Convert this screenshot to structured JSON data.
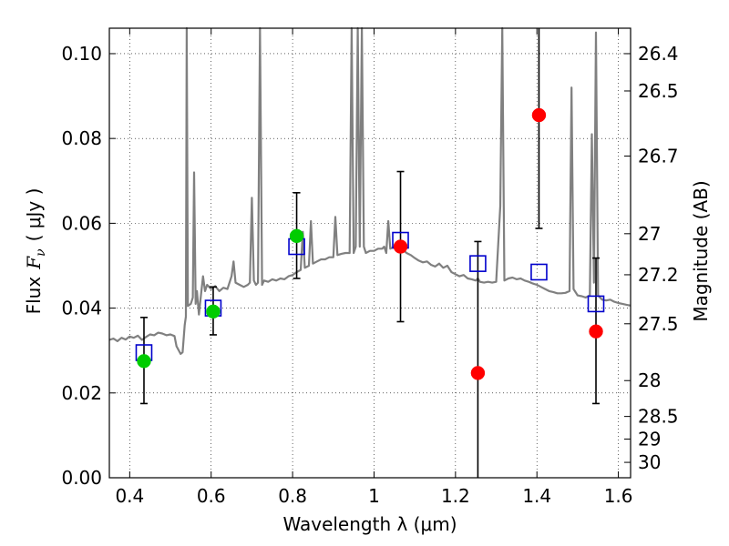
{
  "chart_data": {
    "type": "scatter",
    "xlabel": "Wavelength  λ (μm)",
    "ylabel_main": "Flux",
    "ylabel_symbol": "F",
    "ylabel_subscript": "ν",
    "ylabel_unit": "( μJy )",
    "ylabel_right": "Magnitude (AB)",
    "xlim": [
      0.35,
      1.63
    ],
    "ylim": [
      0.0,
      0.106
    ],
    "grid": true,
    "x_ticks": [
      {
        "value": 0.4,
        "label": "0.4"
      },
      {
        "value": 0.6,
        "label": "0.6"
      },
      {
        "value": 0.8,
        "label": "0.8"
      },
      {
        "value": 1.0,
        "label": "1"
      },
      {
        "value": 1.2,
        "label": "1.2"
      },
      {
        "value": 1.4,
        "label": "1.4"
      },
      {
        "value": 1.6,
        "label": "1.6"
      }
    ],
    "y_ticks": [
      {
        "value": 0.0,
        "label": "0.00"
      },
      {
        "value": 0.02,
        "label": "0.02"
      },
      {
        "value": 0.04,
        "label": "0.04"
      },
      {
        "value": 0.06,
        "label": "0.06"
      },
      {
        "value": 0.08,
        "label": "0.08"
      },
      {
        "value": 0.1,
        "label": "0.10"
      }
    ],
    "mag_ticks": [
      {
        "value": 26.4,
        "label": "26.4"
      },
      {
        "value": 26.5,
        "label": "26.5"
      },
      {
        "value": 26.7,
        "label": "26.7"
      },
      {
        "value": 27,
        "label": "27"
      },
      {
        "value": 27.2,
        "label": "27.2"
      },
      {
        "value": 27.5,
        "label": "27.5"
      },
      {
        "value": 28,
        "label": "28"
      },
      {
        "value": 28.5,
        "label": "28.5"
      },
      {
        "value": 29,
        "label": "29"
      },
      {
        "value": 30,
        "label": "30"
      }
    ],
    "model_spectrum": {
      "color": "#808080",
      "points": [
        [
          0.35,
          0.0325
        ],
        [
          0.36,
          0.0328
        ],
        [
          0.37,
          0.0322
        ],
        [
          0.38,
          0.033
        ],
        [
          0.39,
          0.0326
        ],
        [
          0.4,
          0.0333
        ],
        [
          0.41,
          0.033
        ],
        [
          0.42,
          0.0335
        ],
        [
          0.43,
          0.0325
        ],
        [
          0.44,
          0.0332
        ],
        [
          0.45,
          0.0338
        ],
        [
          0.46,
          0.0336
        ],
        [
          0.47,
          0.0342
        ],
        [
          0.48,
          0.034
        ],
        [
          0.49,
          0.0336
        ],
        [
          0.5,
          0.0338
        ],
        [
          0.51,
          0.0334
        ],
        [
          0.515,
          0.031
        ],
        [
          0.525,
          0.0292
        ],
        [
          0.53,
          0.0296
        ],
        [
          0.535,
          0.036
        ],
        [
          0.538,
          0.038
        ],
        [
          0.54,
          0.106
        ],
        [
          0.543,
          0.0405
        ],
        [
          0.55,
          0.041
        ],
        [
          0.555,
          0.0425
        ],
        [
          0.558,
          0.072
        ],
        [
          0.562,
          0.041
        ],
        [
          0.565,
          0.044
        ],
        [
          0.57,
          0.0385
        ],
        [
          0.575,
          0.043
        ],
        [
          0.58,
          0.0475
        ],
        [
          0.585,
          0.044
        ],
        [
          0.59,
          0.0455
        ],
        [
          0.6,
          0.0445
        ],
        [
          0.61,
          0.0452
        ],
        [
          0.62,
          0.044
        ],
        [
          0.63,
          0.0448
        ],
        [
          0.64,
          0.0445
        ],
        [
          0.65,
          0.0475
        ],
        [
          0.655,
          0.051
        ],
        [
          0.66,
          0.046
        ],
        [
          0.67,
          0.0455
        ],
        [
          0.68,
          0.045
        ],
        [
          0.69,
          0.0455
        ],
        [
          0.695,
          0.046
        ],
        [
          0.7,
          0.066
        ],
        [
          0.705,
          0.0465
        ],
        [
          0.71,
          0.0455
        ],
        [
          0.715,
          0.046
        ],
        [
          0.72,
          0.106
        ],
        [
          0.725,
          0.0455
        ],
        [
          0.73,
          0.0465
        ],
        [
          0.74,
          0.0462
        ],
        [
          0.75,
          0.0468
        ],
        [
          0.76,
          0.0465
        ],
        [
          0.77,
          0.047
        ],
        [
          0.78,
          0.0468
        ],
        [
          0.79,
          0.0475
        ],
        [
          0.8,
          0.0478
        ],
        [
          0.81,
          0.0485
        ],
        [
          0.82,
          0.049
        ],
        [
          0.825,
          0.058
        ],
        [
          0.83,
          0.0495
        ],
        [
          0.84,
          0.05
        ],
        [
          0.845,
          0.0605
        ],
        [
          0.85,
          0.0505
        ],
        [
          0.86,
          0.051
        ],
        [
          0.87,
          0.0515
        ],
        [
          0.88,
          0.0515
        ],
        [
          0.89,
          0.052
        ],
        [
          0.9,
          0.052
        ],
        [
          0.905,
          0.0615
        ],
        [
          0.91,
          0.0525
        ],
        [
          0.92,
          0.0528
        ],
        [
          0.93,
          0.053
        ],
        [
          0.94,
          0.053
        ],
        [
          0.945,
          0.106
        ],
        [
          0.95,
          0.053
        ],
        [
          0.955,
          0.0545
        ],
        [
          0.96,
          0.106
        ],
        [
          0.965,
          0.0545
        ],
        [
          0.97,
          0.106
        ],
        [
          0.975,
          0.0545
        ],
        [
          0.98,
          0.053
        ],
        [
          0.99,
          0.0535
        ],
        [
          1.0,
          0.0535
        ],
        [
          1.01,
          0.054
        ],
        [
          1.02,
          0.054
        ],
        [
          1.025,
          0.0545
        ],
        [
          1.03,
          0.053
        ],
        [
          1.035,
          0.0605
        ],
        [
          1.04,
          0.054
        ],
        [
          1.05,
          0.0545
        ],
        [
          1.06,
          0.054
        ],
        [
          1.07,
          0.0538
        ],
        [
          1.08,
          0.053
        ],
        [
          1.09,
          0.0525
        ],
        [
          1.1,
          0.0518
        ],
        [
          1.11,
          0.0512
        ],
        [
          1.12,
          0.0508
        ],
        [
          1.13,
          0.051
        ],
        [
          1.14,
          0.0502
        ],
        [
          1.15,
          0.0498
        ],
        [
          1.16,
          0.0505
        ],
        [
          1.17,
          0.0495
        ],
        [
          1.18,
          0.05
        ],
        [
          1.19,
          0.0485
        ],
        [
          1.2,
          0.048
        ],
        [
          1.21,
          0.0475
        ],
        [
          1.22,
          0.0478
        ],
        [
          1.23,
          0.047
        ],
        [
          1.24,
          0.0468
        ],
        [
          1.25,
          0.0465
        ],
        [
          1.255,
          0.047
        ],
        [
          1.26,
          0.0462
        ],
        [
          1.27,
          0.046
        ],
        [
          1.28,
          0.0462
        ],
        [
          1.29,
          0.046
        ],
        [
          1.3,
          0.0462
        ],
        [
          1.31,
          0.064
        ],
        [
          1.315,
          0.106
        ],
        [
          1.32,
          0.0465
        ],
        [
          1.33,
          0.047
        ],
        [
          1.34,
          0.0472
        ],
        [
          1.35,
          0.0468
        ],
        [
          1.36,
          0.047
        ],
        [
          1.37,
          0.0465
        ],
        [
          1.38,
          0.0462
        ],
        [
          1.39,
          0.0458
        ],
        [
          1.4,
          0.0455
        ],
        [
          1.41,
          0.045
        ],
        [
          1.42,
          0.0445
        ],
        [
          1.43,
          0.044
        ],
        [
          1.44,
          0.0438
        ],
        [
          1.45,
          0.0435
        ],
        [
          1.46,
          0.0435
        ],
        [
          1.47,
          0.0436
        ],
        [
          1.48,
          0.044
        ],
        [
          1.485,
          0.092
        ],
        [
          1.49,
          0.0445
        ],
        [
          1.5,
          0.043
        ],
        [
          1.51,
          0.0428
        ],
        [
          1.52,
          0.0425
        ],
        [
          1.53,
          0.043
        ],
        [
          1.535,
          0.081
        ],
        [
          1.54,
          0.046
        ],
        [
          1.545,
          0.105
        ],
        [
          1.55,
          0.043
        ],
        [
          1.56,
          0.042
        ],
        [
          1.57,
          0.0418
        ],
        [
          1.58,
          0.042
        ],
        [
          1.59,
          0.0415
        ],
        [
          1.6,
          0.0412
        ],
        [
          1.61,
          0.041
        ],
        [
          1.62,
          0.0408
        ],
        [
          1.63,
          0.0406
        ]
      ]
    },
    "series": [
      {
        "marker": "open-square",
        "color": "#0000cc",
        "points": [
          {
            "x": 0.435,
            "y": 0.0295
          },
          {
            "x": 0.605,
            "y": 0.04
          },
          {
            "x": 0.81,
            "y": 0.0545
          },
          {
            "x": 1.065,
            "y": 0.056
          },
          {
            "x": 1.255,
            "y": 0.0505
          },
          {
            "x": 1.405,
            "y": 0.0485
          },
          {
            "x": 1.545,
            "y": 0.041
          }
        ]
      },
      {
        "marker": "filled-circle",
        "color": "#00cc00",
        "points": [
          {
            "x": 0.435,
            "y": 0.0275,
            "yerr_low": 0.0175,
            "yerr_high": 0.0378
          },
          {
            "x": 0.605,
            "y": 0.0392,
            "yerr_low": 0.0337,
            "yerr_high": 0.045
          },
          {
            "x": 0.81,
            "y": 0.057,
            "yerr_low": 0.047,
            "yerr_high": 0.0672
          }
        ]
      },
      {
        "marker": "filled-circle",
        "color": "#ff0000",
        "points": [
          {
            "x": 1.065,
            "y": 0.0545,
            "yerr_low": 0.0368,
            "yerr_high": 0.0722
          },
          {
            "x": 1.255,
            "y": 0.0247,
            "yerr_low": 0.0,
            "yerr_high": 0.0557
          },
          {
            "x": 1.405,
            "y": 0.0855,
            "yerr_low": 0.0588,
            "yerr_high": 0.106
          },
          {
            "x": 1.545,
            "y": 0.0345,
            "yerr_low": 0.0175,
            "yerr_high": 0.0518
          }
        ]
      }
    ]
  }
}
